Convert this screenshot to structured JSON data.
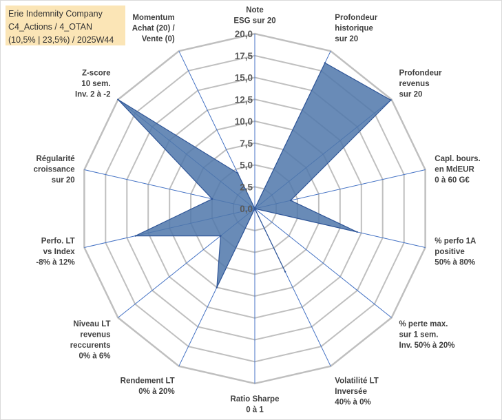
{
  "title_lines": [
    "Erie Indemnity Company",
    "C4_Actions / 4_OTAN",
    "(10,5% | 23,5%) / 2025W44"
  ],
  "colors": {
    "title_bg": "#fbe5b6",
    "grid_ring": "#bfbfbf",
    "spoke": "#4472c4",
    "fill": "#4f77aa",
    "stroke": "#2f5597"
  },
  "chart_data": {
    "type": "radar",
    "r_min": 0,
    "r_max": 20,
    "tick_step": 2.5,
    "tick_labels": [
      "0,0",
      "2,5",
      "5,0",
      "7,5",
      "10,0",
      "12,5",
      "15,0",
      "17,5",
      "20,0"
    ],
    "axes": [
      {
        "label": [
          "Note",
          "ESG sur 20"
        ],
        "value": 0
      },
      {
        "label": [
          "Profondeur",
          "historique",
          "sur 20"
        ],
        "value": 18.5
      },
      {
        "label": [
          "Profondeur",
          "revenus",
          "sur 20"
        ],
        "value": 19.9
      },
      {
        "label": [
          "Capl. bours.",
          "en MdEUR",
          "0 à 60 G€"
        ],
        "value": 4.2
      },
      {
        "label": [
          "% perfo 1A",
          "positive",
          "50% à 80%"
        ],
        "value": 12.0
      },
      {
        "label": [
          "% perte max.",
          "sur 1 sem.",
          "Inv. 50% à 20%"
        ],
        "value": 0
      },
      {
        "label": [
          "Volatilité LT",
          "Inversée",
          "40% à 0%"
        ],
        "value": 8.0
      },
      {
        "label": [
          "Ratio Sharpe",
          "0 à 1"
        ],
        "value": 0
      },
      {
        "label": [
          "Rendement LT",
          "0% à 20%"
        ],
        "value": 10.0
      },
      {
        "label": [
          "Niveau LT",
          "revenus",
          "reccurents",
          "0% à 6%"
        ],
        "value": 5.0
      },
      {
        "label": [
          "Perfo. LT",
          "vs Index",
          "-8% à 12%"
        ],
        "value": 14.0
      },
      {
        "label": [
          "Régularité",
          "croissance",
          "sur 20"
        ],
        "value": 5.0
      },
      {
        "label": [
          "Z-score",
          "10 sem.",
          "Inv. 2 à -2"
        ],
        "value": 20.0
      },
      {
        "label": [
          "Momentum",
          "Achat (20) /",
          "Vente (0)"
        ],
        "value": 4.5
      }
    ]
  }
}
